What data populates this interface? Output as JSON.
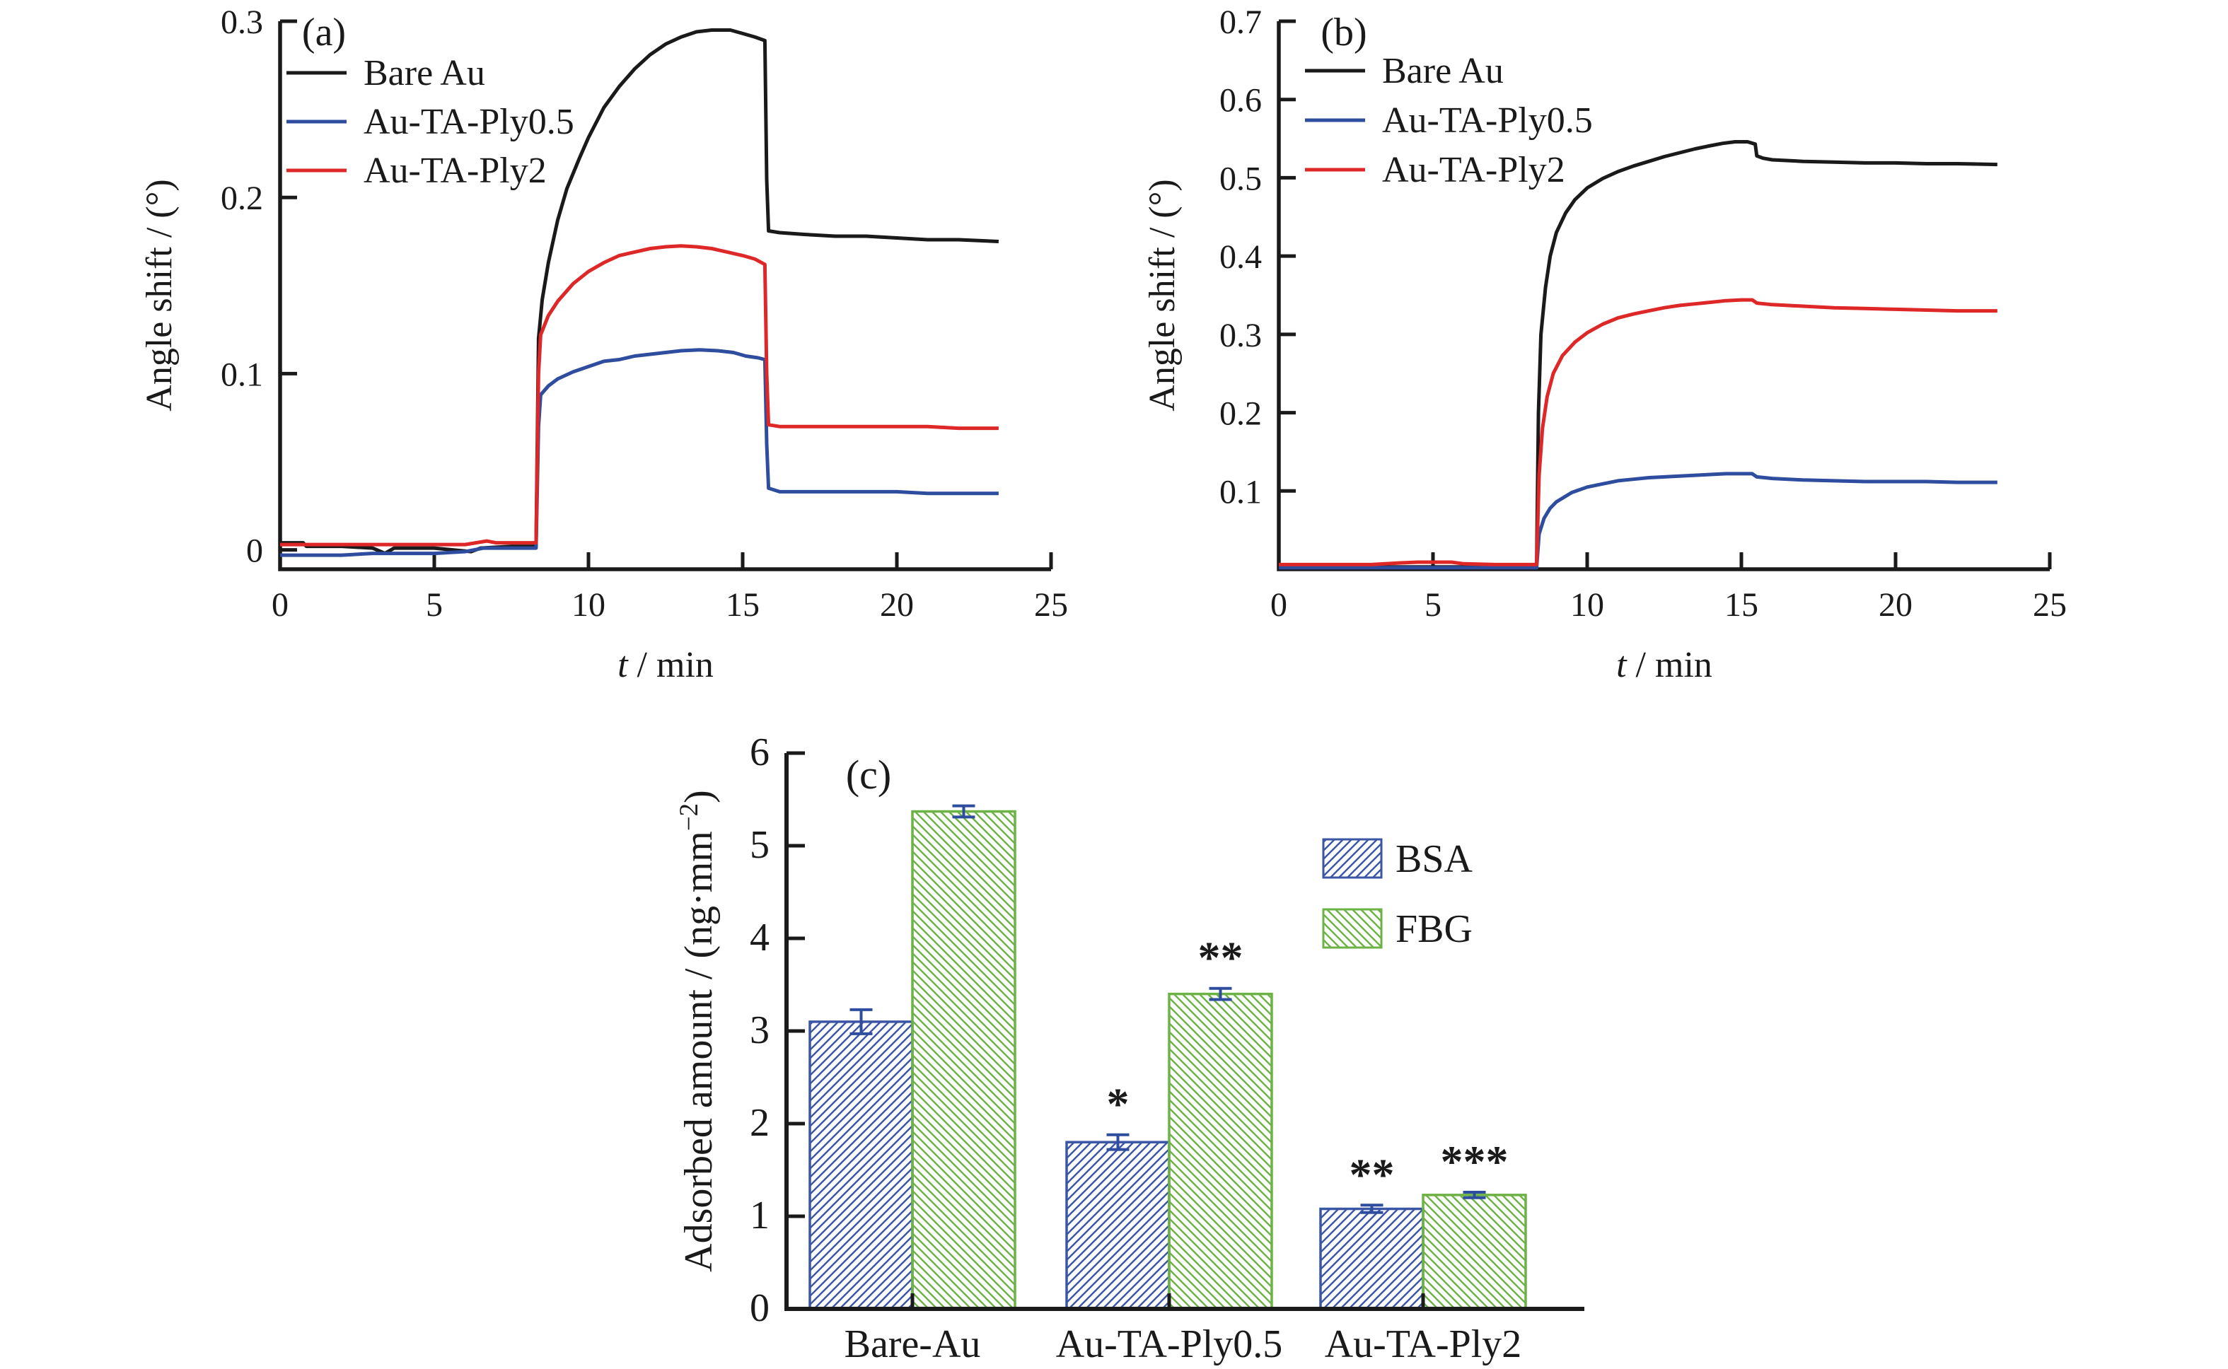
{
  "figure": {
    "background": "#ffffff",
    "text_color": "#1a1a1a",
    "panel_labels": [
      "(a)",
      "(b)",
      "(c)"
    ]
  },
  "chart_data": [
    {
      "id": "panel-a",
      "type": "line",
      "title": "(a)",
      "xlabel": "t / min",
      "xlabel_var": "t",
      "xlabel_rest": " / min",
      "ylabel": "Angle shift / (°)",
      "xlim": [
        0,
        25
      ],
      "ylim": [
        -0.011,
        0.3
      ],
      "xticks": [
        0,
        5,
        10,
        15,
        20,
        25
      ],
      "xtick_labels": [
        "0",
        "5",
        "10",
        "15",
        "20",
        "25"
      ],
      "yticks": [
        0,
        0.1,
        0.2,
        0.3
      ],
      "ytick_labels": [
        "0",
        "0.1",
        "0.2",
        "0.3"
      ],
      "grid": false,
      "legend_position": "upper-left-inside",
      "series": [
        {
          "name": "Bare Au",
          "color": "#1a1a1a",
          "points": [
            [
              0,
              0.004
            ],
            [
              0.75,
              0.004
            ],
            [
              0.85,
              0.002
            ],
            [
              2,
              0.002
            ],
            [
              3,
              0.001
            ],
            [
              3.4,
              -0.002
            ],
            [
              3.7,
              0.001
            ],
            [
              5,
              0.001
            ],
            [
              6.2,
              -0.001
            ],
            [
              6.5,
              0.001
            ],
            [
              7.5,
              0.002
            ],
            [
              8.3,
              0.002
            ],
            [
              8.38,
              0.12
            ],
            [
              8.5,
              0.142
            ],
            [
              8.7,
              0.163
            ],
            [
              9,
              0.187
            ],
            [
              9.3,
              0.205
            ],
            [
              9.7,
              0.222
            ],
            [
              10,
              0.234
            ],
            [
              10.5,
              0.251
            ],
            [
              11,
              0.263
            ],
            [
              11.5,
              0.273
            ],
            [
              12,
              0.281
            ],
            [
              12.5,
              0.287
            ],
            [
              13,
              0.291
            ],
            [
              13.5,
              0.294
            ],
            [
              14,
              0.295
            ],
            [
              14.6,
              0.295
            ],
            [
              15,
              0.293
            ],
            [
              15.4,
              0.291
            ],
            [
              15.72,
              0.289
            ],
            [
              15.78,
              0.21
            ],
            [
              15.84,
              0.181
            ],
            [
              16.2,
              0.18
            ],
            [
              17,
              0.179
            ],
            [
              18,
              0.178
            ],
            [
              19,
              0.178
            ],
            [
              20,
              0.177
            ],
            [
              21,
              0.176
            ],
            [
              22,
              0.176
            ],
            [
              23.3,
              0.175
            ]
          ]
        },
        {
          "name": "Au-TA-Ply0.5",
          "color": "#2e4d9e",
          "points": [
            [
              0,
              -0.003
            ],
            [
              1,
              -0.003
            ],
            [
              2,
              -0.003
            ],
            [
              3,
              -0.002
            ],
            [
              4,
              -0.002
            ],
            [
              5,
              -0.002
            ],
            [
              6,
              -0.001
            ],
            [
              6.6,
              0.001
            ],
            [
              7.5,
              0.001
            ],
            [
              8.3,
              0.001
            ],
            [
              8.38,
              0.07
            ],
            [
              8.45,
              0.088
            ],
            [
              8.7,
              0.093
            ],
            [
              9,
              0.097
            ],
            [
              9.5,
              0.101
            ],
            [
              10,
              0.104
            ],
            [
              10.5,
              0.107
            ],
            [
              11,
              0.108
            ],
            [
              11.5,
              0.11
            ],
            [
              12,
              0.111
            ],
            [
              12.5,
              0.112
            ],
            [
              13,
              0.113
            ],
            [
              13.6,
              0.1135
            ],
            [
              14.2,
              0.113
            ],
            [
              14.7,
              0.112
            ],
            [
              15.1,
              0.11
            ],
            [
              15.5,
              0.109
            ],
            [
              15.72,
              0.108
            ],
            [
              15.78,
              0.06
            ],
            [
              15.84,
              0.035
            ],
            [
              16.2,
              0.033
            ],
            [
              17,
              0.033
            ],
            [
              18,
              0.033
            ],
            [
              19,
              0.033
            ],
            [
              20,
              0.033
            ],
            [
              21,
              0.032
            ],
            [
              22,
              0.032
            ],
            [
              23.3,
              0.032
            ]
          ]
        },
        {
          "name": "Au-TA-Ply2",
          "color": "#de2828",
          "points": [
            [
              0,
              0.003
            ],
            [
              1,
              0.003
            ],
            [
              2,
              0.003
            ],
            [
              3,
              0.003
            ],
            [
              4,
              0.003
            ],
            [
              5,
              0.003
            ],
            [
              6,
              0.003
            ],
            [
              6.7,
              0.005
            ],
            [
              7,
              0.004
            ],
            [
              7.6,
              0.004
            ],
            [
              8.3,
              0.004
            ],
            [
              8.38,
              0.1
            ],
            [
              8.45,
              0.122
            ],
            [
              8.7,
              0.133
            ],
            [
              9,
              0.141
            ],
            [
              9.5,
              0.151
            ],
            [
              10,
              0.158
            ],
            [
              10.5,
              0.163
            ],
            [
              11,
              0.167
            ],
            [
              11.5,
              0.169
            ],
            [
              12,
              0.171
            ],
            [
              12.5,
              0.172
            ],
            [
              13,
              0.1725
            ],
            [
              13.5,
              0.172
            ],
            [
              14,
              0.171
            ],
            [
              14.5,
              0.169
            ],
            [
              15,
              0.167
            ],
            [
              15.4,
              0.165
            ],
            [
              15.72,
              0.162
            ],
            [
              15.78,
              0.1
            ],
            [
              15.84,
              0.071
            ],
            [
              16.2,
              0.07
            ],
            [
              17,
              0.07
            ],
            [
              18,
              0.07
            ],
            [
              19,
              0.07
            ],
            [
              20,
              0.07
            ],
            [
              21,
              0.07
            ],
            [
              22,
              0.069
            ],
            [
              23.3,
              0.069
            ]
          ]
        }
      ]
    },
    {
      "id": "panel-b",
      "type": "line",
      "title": "(b)",
      "xlabel": "t / min",
      "xlabel_var": "t",
      "xlabel_rest": " / min",
      "ylabel": "Angle shift / (°)",
      "xlim": [
        0,
        25
      ],
      "ylim": [
        0,
        0.7
      ],
      "xticks": [
        0,
        5,
        10,
        15,
        20,
        25
      ],
      "xtick_labels": [
        "0",
        "5",
        "10",
        "15",
        "20",
        "25"
      ],
      "yticks": [
        0.1,
        0.2,
        0.3,
        0.4,
        0.5,
        0.6,
        0.7
      ],
      "ytick_labels": [
        "0.1",
        "0.2",
        "0.3",
        "0.4",
        "0.5",
        "0.6",
        "0.7"
      ],
      "grid": false,
      "legend_position": "upper-left-inside",
      "series": [
        {
          "name": "Bare Au",
          "color": "#1a1a1a",
          "points": [
            [
              0,
              0.003
            ],
            [
              2,
              0.003
            ],
            [
              4,
              0.003
            ],
            [
              6,
              0.003
            ],
            [
              8,
              0.003
            ],
            [
              8.36,
              0.003
            ],
            [
              8.42,
              0.2
            ],
            [
              8.5,
              0.3
            ],
            [
              8.65,
              0.36
            ],
            [
              8.8,
              0.4
            ],
            [
              9,
              0.43
            ],
            [
              9.3,
              0.455
            ],
            [
              9.6,
              0.472
            ],
            [
              10,
              0.487
            ],
            [
              10.5,
              0.499
            ],
            [
              11,
              0.508
            ],
            [
              11.5,
              0.515
            ],
            [
              12,
              0.521
            ],
            [
              12.5,
              0.527
            ],
            [
              13,
              0.532
            ],
            [
              13.5,
              0.537
            ],
            [
              14,
              0.541
            ],
            [
              14.4,
              0.544
            ],
            [
              14.8,
              0.546
            ],
            [
              15.2,
              0.546
            ],
            [
              15.45,
              0.543
            ],
            [
              15.5,
              0.528
            ],
            [
              15.7,
              0.525
            ],
            [
              16,
              0.523
            ],
            [
              17,
              0.521
            ],
            [
              18,
              0.52
            ],
            [
              19,
              0.519
            ],
            [
              20,
              0.519
            ],
            [
              21,
              0.518
            ],
            [
              22,
              0.518
            ],
            [
              23.3,
              0.517
            ]
          ]
        },
        {
          "name": "Au-TA-Ply0.5",
          "color": "#2e4d9e",
          "points": [
            [
              0,
              0.002
            ],
            [
              2,
              0.002
            ],
            [
              4,
              0.002
            ],
            [
              6,
              0.002
            ],
            [
              8,
              0.002
            ],
            [
              8.36,
              0.002
            ],
            [
              8.44,
              0.045
            ],
            [
              8.6,
              0.065
            ],
            [
              8.8,
              0.078
            ],
            [
              9,
              0.086
            ],
            [
              9.5,
              0.098
            ],
            [
              10,
              0.105
            ],
            [
              10.5,
              0.109
            ],
            [
              11,
              0.113
            ],
            [
              11.5,
              0.115
            ],
            [
              12,
              0.117
            ],
            [
              12.5,
              0.118
            ],
            [
              13,
              0.119
            ],
            [
              13.5,
              0.12
            ],
            [
              14,
              0.121
            ],
            [
              14.5,
              0.122
            ],
            [
              15,
              0.122
            ],
            [
              15.35,
              0.122
            ],
            [
              15.5,
              0.118
            ],
            [
              16,
              0.116
            ],
            [
              17,
              0.114
            ],
            [
              18,
              0.113
            ],
            [
              19,
              0.112
            ],
            [
              20,
              0.112
            ],
            [
              21,
              0.112
            ],
            [
              22,
              0.111
            ],
            [
              23.3,
              0.111
            ]
          ]
        },
        {
          "name": "Au-TA-Ply2",
          "color": "#de2828",
          "points": [
            [
              0,
              0.006
            ],
            [
              1,
              0.006
            ],
            [
              2,
              0.006
            ],
            [
              3,
              0.006
            ],
            [
              3.9,
              0.008
            ],
            [
              4.5,
              0.009
            ],
            [
              5,
              0.009
            ],
            [
              5.6,
              0.009
            ],
            [
              6,
              0.007
            ],
            [
              7,
              0.006
            ],
            [
              8,
              0.006
            ],
            [
              8.36,
              0.006
            ],
            [
              8.44,
              0.12
            ],
            [
              8.55,
              0.18
            ],
            [
              8.7,
              0.22
            ],
            [
              8.9,
              0.25
            ],
            [
              9.2,
              0.273
            ],
            [
              9.6,
              0.29
            ],
            [
              10,
              0.302
            ],
            [
              10.5,
              0.313
            ],
            [
              11,
              0.321
            ],
            [
              11.5,
              0.326
            ],
            [
              12,
              0.33
            ],
            [
              12.5,
              0.334
            ],
            [
              13,
              0.337
            ],
            [
              13.5,
              0.339
            ],
            [
              14,
              0.341
            ],
            [
              14.5,
              0.343
            ],
            [
              15,
              0.344
            ],
            [
              15.35,
              0.344
            ],
            [
              15.5,
              0.34
            ],
            [
              16,
              0.338
            ],
            [
              17,
              0.336
            ],
            [
              18,
              0.334
            ],
            [
              19,
              0.333
            ],
            [
              20,
              0.332
            ],
            [
              21,
              0.331
            ],
            [
              22,
              0.33
            ],
            [
              23.3,
              0.33
            ]
          ]
        }
      ]
    },
    {
      "id": "panel-c",
      "type": "bar",
      "title": "(c)",
      "ylabel": "Adsorbed amount / (ng·mm⁻²)",
      "ylabel_parts": {
        "pre": "Adsorbed amount / (ng·mm",
        "sup": "−2",
        "post": ")"
      },
      "categories": [
        "Bare-Au",
        "Au-TA-Ply0.5",
        "Au-TA-Ply2"
      ],
      "ylim": [
        0,
        6
      ],
      "yticks": [
        0,
        1,
        2,
        3,
        4,
        5,
        6
      ],
      "ytick_labels": [
        "0",
        "1",
        "2",
        "3",
        "4",
        "5",
        "6"
      ],
      "grid": false,
      "error_bar_color": "#2e4d9e",
      "legend_position": "upper-right-inside",
      "series": [
        {
          "name": "BSA",
          "color": "#3a56a5",
          "hatch_direction": "up-right",
          "values": [
            3.1,
            1.8,
            1.08
          ],
          "errors": [
            0.13,
            0.08,
            0.04
          ],
          "significance": [
            "",
            "*",
            "**"
          ]
        },
        {
          "name": "FBG",
          "color": "#6cb244",
          "hatch_direction": "down-right",
          "values": [
            5.37,
            3.4,
            1.23
          ],
          "errors": [
            0.06,
            0.06,
            0.03
          ],
          "significance": [
            "",
            "**",
            "***"
          ]
        }
      ]
    }
  ]
}
